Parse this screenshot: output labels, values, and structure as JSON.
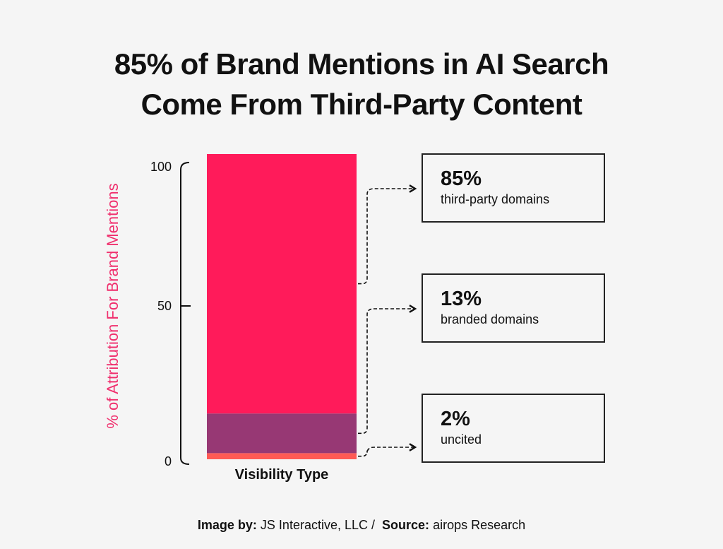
{
  "title": [
    "85% of Brand Mentions in AI Search",
    "Come From Third-Party Content"
  ],
  "chart_data": {
    "type": "bar",
    "stacked": true,
    "xlabel": "Visibility Type",
    "ylabel": "% of Attribution For Brand Mentions",
    "ylim": [
      0,
      100
    ],
    "yticks": [
      "0",
      "50",
      "100"
    ],
    "grid": false,
    "segments": [
      {
        "value": 85,
        "pct_label": "85%",
        "label": "third-party domains",
        "color": "#ff1b5a"
      },
      {
        "value": 13,
        "pct_label": "13%",
        "label": "branded domains",
        "color": "#973874"
      },
      {
        "value": 2,
        "pct_label": "2%",
        "label": "uncited",
        "color": "#ff5a55"
      }
    ]
  },
  "footer": {
    "image_by_label": "Image by:",
    "image_by": "JS Interactive, LLC /",
    "source_label": "Source:",
    "source": "airops Research"
  }
}
